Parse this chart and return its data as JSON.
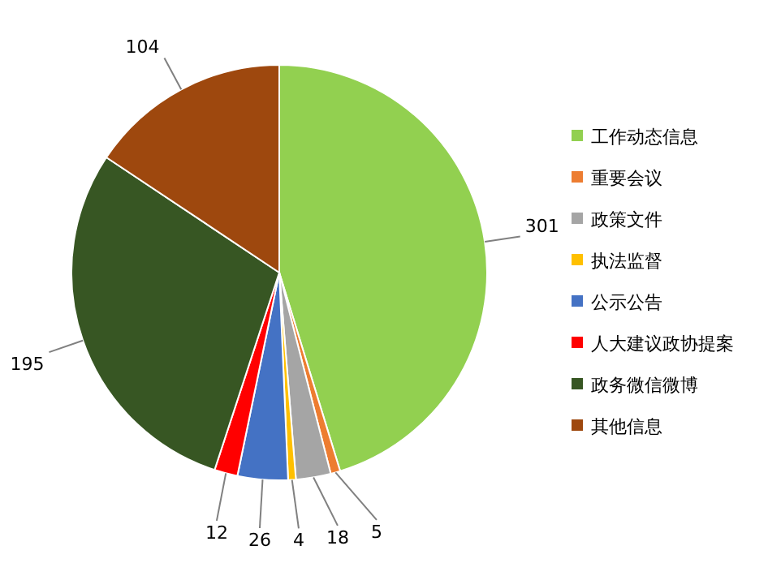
{
  "chart_data": {
    "type": "pie",
    "categories": [
      "工作动态信息",
      "重要会议",
      "政策文件",
      "执法监督",
      "公示公告",
      "人大建议政协提案",
      "政务微信微博",
      "其他信息"
    ],
    "values": [
      301,
      5,
      18,
      4,
      26,
      12,
      195,
      104
    ],
    "colors": [
      "#92d050",
      "#ed7d31",
      "#a5a5a5",
      "#ffc000",
      "#4472c4",
      "#ff0000",
      "#375623",
      "#9e480e"
    ],
    "data_labels": true,
    "legend": "right"
  }
}
